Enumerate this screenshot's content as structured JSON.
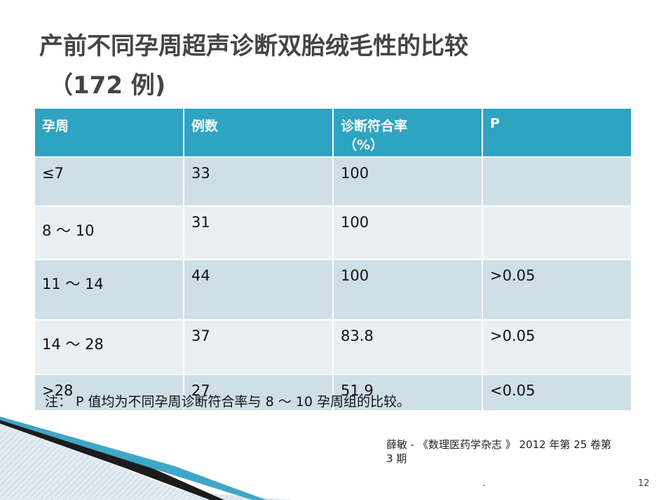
{
  "title": {
    "line1": "产前不同孕周超声诊断双胎绒毛性的比较",
    "line2": "（172 例)"
  },
  "table": {
    "header": [
      [
        "孕周"
      ],
      [
        "例数"
      ],
      [
        "诊断符合率",
        "（%）"
      ],
      [
        "P"
      ]
    ],
    "rows": [
      [
        "≤7",
        "33",
        "100",
        null
      ],
      [
        "8 ～ 10",
        "31",
        "100",
        null
      ],
      [
        "11 ～ 14",
        "44",
        "100",
        ">0.05"
      ],
      [
        "14 ～ 28",
        "37",
        "83.8",
        ">0.05"
      ],
      [
        ">28",
        "27",
        "51.9",
        "<0.05"
      ]
    ]
  },
  "note": "注： P 值均为不同孕周诊断符合率与 8 ～ 10 孕周组的比较。",
  "citation": [
    "薛敏 - 《数理医药学杂志 》 2012 年第 25 卷第",
    "3 期"
  ],
  "footer": {
    "dot": ".",
    "page": "12"
  }
}
